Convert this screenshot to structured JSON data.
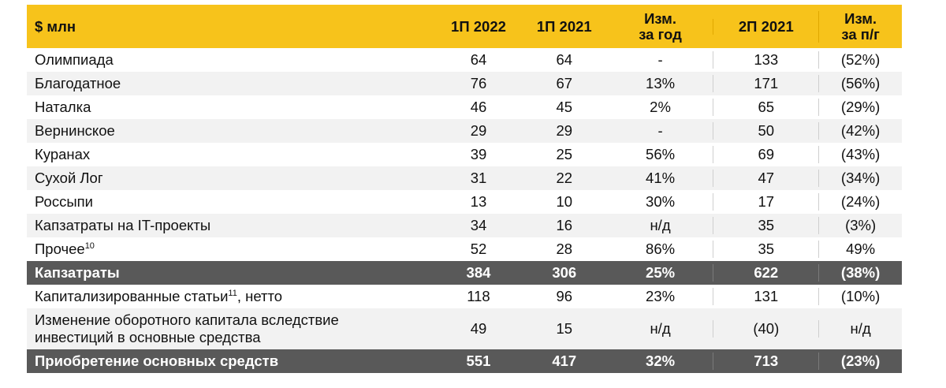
{
  "header": {
    "label": "$ млн",
    "cols": [
      "1П 2022",
      "1П 2021",
      "Изм.\nза год",
      "2П 2021",
      "Изм.\nза п/г"
    ],
    "col3_line1": "Изм.",
    "col3_line2": "за год",
    "col5_line1": "Изм.",
    "col5_line2": "за п/г"
  },
  "rows": [
    {
      "label": "Олимпиада",
      "sup": "",
      "v": [
        "64",
        "64",
        "-",
        "133",
        "(52%)"
      ]
    },
    {
      "label": "Благодатное",
      "sup": "",
      "v": [
        "76",
        "67",
        "13%",
        "171",
        "(56%)"
      ]
    },
    {
      "label": "Наталка",
      "sup": "",
      "v": [
        "46",
        "45",
        "2%",
        "65",
        "(29%)"
      ]
    },
    {
      "label": "Вернинское",
      "sup": "",
      "v": [
        "29",
        "29",
        "-",
        "50",
        "(42%)"
      ]
    },
    {
      "label": "Куранах",
      "sup": "",
      "v": [
        "39",
        "25",
        "56%",
        "69",
        "(43%)"
      ]
    },
    {
      "label": "Сухой Лог",
      "sup": "",
      "v": [
        "31",
        "22",
        "41%",
        "47",
        "(34%)"
      ]
    },
    {
      "label": "Россыпи",
      "sup": "",
      "v": [
        "13",
        "10",
        "30%",
        "17",
        "(24%)"
      ]
    },
    {
      "label": "Капзатраты на IT-проекты",
      "sup": "",
      "v": [
        "34",
        "16",
        "н/д",
        "35",
        "(3%)"
      ]
    },
    {
      "label": "Прочее",
      "sup": "10",
      "v": [
        "52",
        "28",
        "86%",
        "35",
        "49%"
      ]
    }
  ],
  "capex_total": {
    "label": "Капзатраты",
    "v": [
      "384",
      "306",
      "25%",
      "622",
      "(38%)"
    ]
  },
  "capitalized": {
    "label_before": "Капитализированные статьи",
    "sup": "11",
    "label_after": ", нетто",
    "v": [
      "118",
      "96",
      "23%",
      "131",
      "(10%)"
    ]
  },
  "working_capital": {
    "label_line1": "Изменение оборотного капитала вследствие",
    "label_line2": "инвестиций в основные средства",
    "v": [
      "49",
      "15",
      "н/д",
      "(40)",
      "н/д"
    ]
  },
  "grand_total": {
    "label": "Приобретение основных средств",
    "v": [
      "551",
      "417",
      "32%",
      "713",
      "(23%)"
    ]
  },
  "colors": {
    "header_bg": "#f7c31b",
    "total_bg": "#595959",
    "alt_row_bg": "#f2f2f2"
  }
}
